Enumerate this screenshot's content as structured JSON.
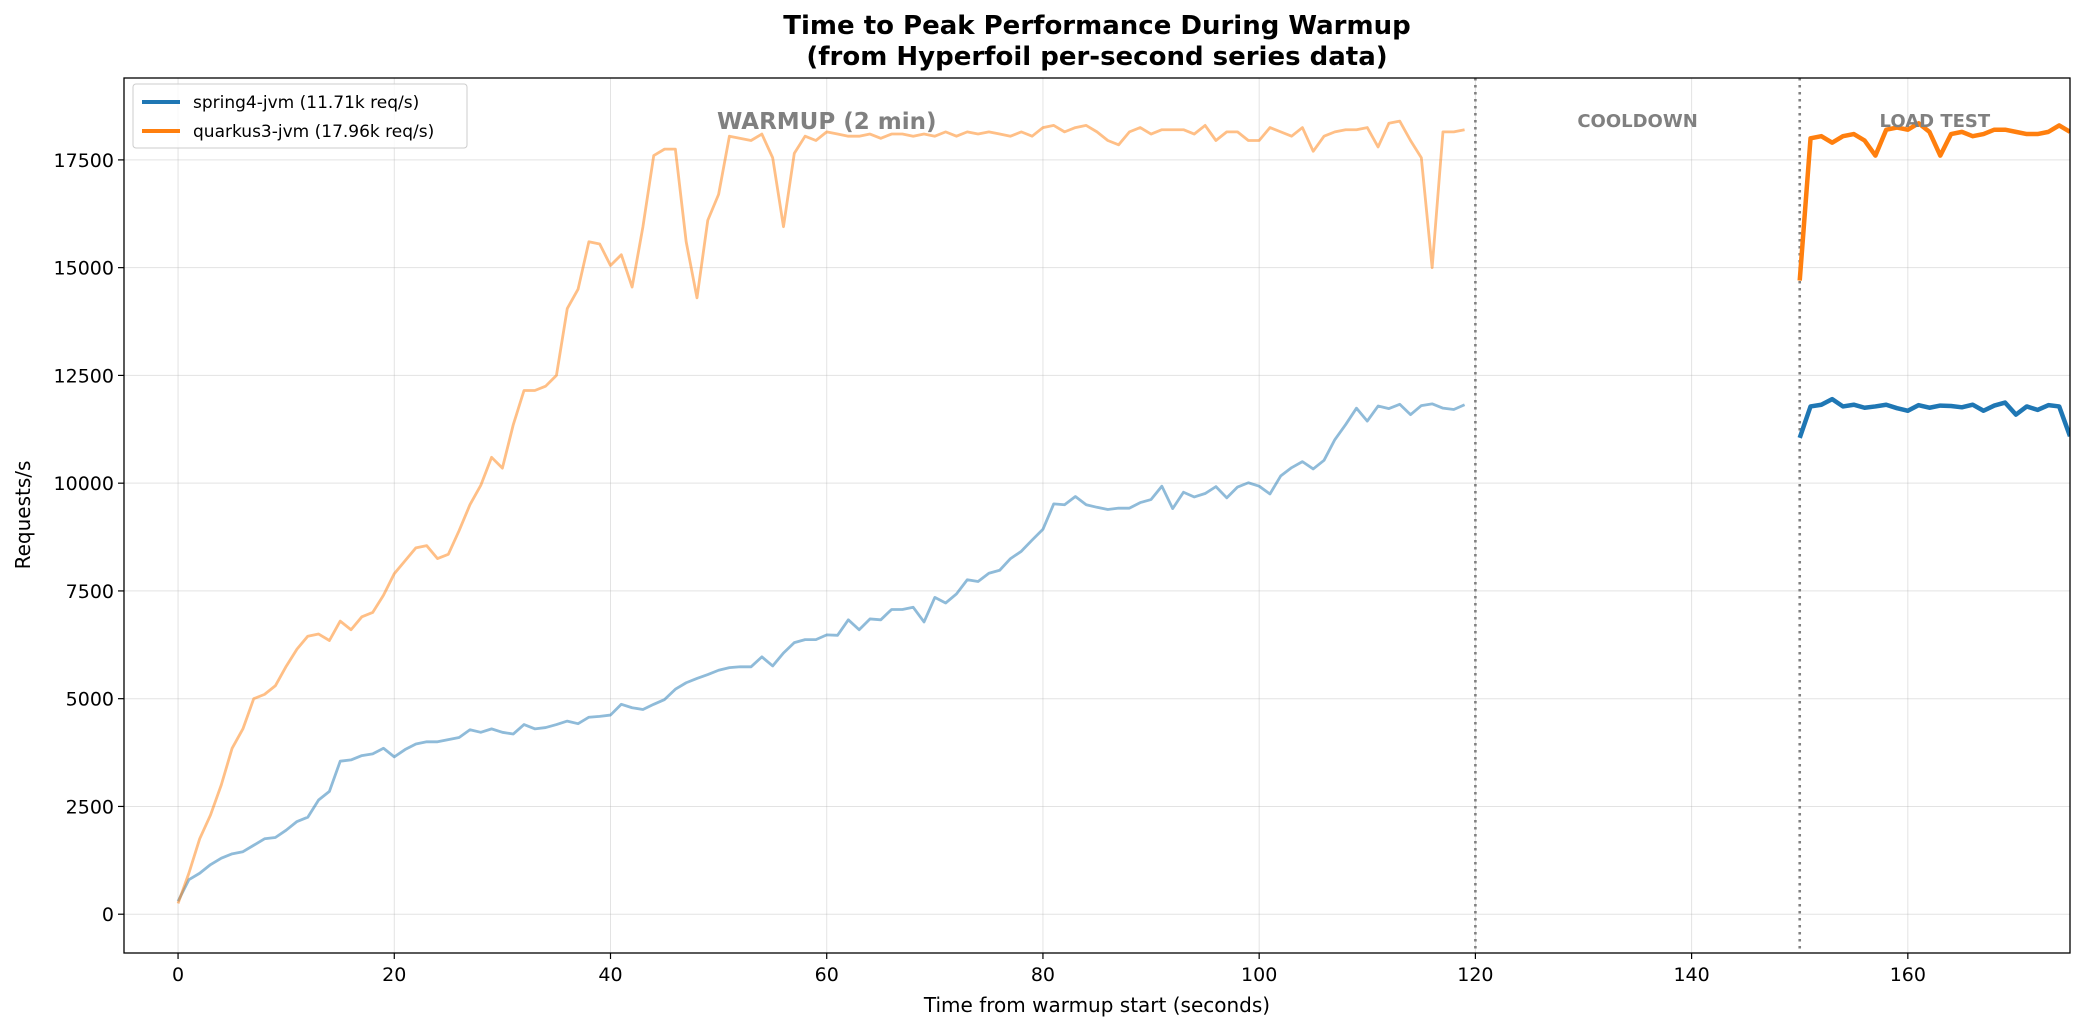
{
  "chart_data": {
    "type": "line",
    "title": "Time to Peak Performance During Warmup",
    "subtitle": "(from Hyperfoil per-second series data)",
    "xlabel": "Time from warmup start (seconds)",
    "ylabel": "Requests/s",
    "xlim": [
      -5,
      175
    ],
    "ylim": [
      -900,
      19400
    ],
    "x_ticks": [
      0,
      20,
      40,
      60,
      80,
      100,
      120,
      140,
      160
    ],
    "y_ticks": [
      0,
      2500,
      5000,
      7500,
      10000,
      12500,
      15000,
      17500
    ],
    "grid": true,
    "legend_position": "top-left",
    "phase_dividers": [
      120,
      150
    ],
    "phases": [
      {
        "label": "WARMUP (2 min)",
        "x_center": 60
      },
      {
        "label": "COOLDOWN",
        "x_center": 135
      },
      {
        "label": "LOAD TEST",
        "x_center": 162.5
      }
    ],
    "series": [
      {
        "name": "spring4-jvm (11.71k req/s)",
        "color": "#1f77b4",
        "warmup_x_start": 0,
        "warmup": [
          300,
          800,
          950,
          1150,
          1300,
          1400,
          1450,
          1600,
          1750,
          1780,
          1950,
          2150,
          2250,
          2650,
          2850,
          3550,
          3580,
          3680,
          3720,
          3850,
          3650,
          3820,
          3950,
          4000,
          4000,
          4050,
          4100,
          4280,
          4220,
          4300,
          4220,
          4180,
          4400,
          4300,
          4330,
          4400,
          4480,
          4420,
          4570,
          4590,
          4620,
          4870,
          4790,
          4750,
          4870,
          4980,
          5220,
          5370,
          5470,
          5560,
          5660,
          5720,
          5740,
          5740,
          5970,
          5760,
          6060,
          6300,
          6370,
          6370,
          6480,
          6470,
          6830,
          6600,
          6850,
          6830,
          7070,
          7070,
          7120,
          6780,
          7350,
          7220,
          7430,
          7760,
          7720,
          7910,
          7980,
          8250,
          8420,
          8680,
          8930,
          9520,
          9500,
          9690,
          9500,
          9440,
          9390,
          9420,
          9420,
          9550,
          9620,
          9930,
          9410,
          9790,
          9680,
          9760,
          9920,
          9660,
          9910,
          10010,
          9930,
          9750,
          10170,
          10360,
          10500,
          10330,
          10530,
          11010,
          11360,
          11740,
          11440,
          11790,
          11730,
          11830,
          11590,
          11800,
          11840,
          11740,
          11710,
          11820
        ],
        "load_x_start": 150,
        "load": [
          11050,
          11780,
          11820,
          11950,
          11780,
          11820,
          11750,
          11780,
          11820,
          11740,
          11680,
          11810,
          11750,
          11800,
          11790,
          11760,
          11820,
          11680,
          11800,
          11870,
          11590,
          11780,
          11700,
          11810,
          11780,
          11090
        ]
      },
      {
        "name": "quarkus3-jvm (17.96k req/s)",
        "color": "#ff7f0e",
        "warmup_x_start": 0,
        "warmup": [
          250,
          950,
          1750,
          2300,
          3000,
          3850,
          4300,
          5000,
          5100,
          5300,
          5750,
          6150,
          6450,
          6500,
          6350,
          6800,
          6600,
          6900,
          7000,
          7400,
          7900,
          8200,
          8500,
          8550,
          8250,
          8350,
          8900,
          9500,
          9950,
          10600,
          10350,
          11350,
          12150,
          12150,
          12250,
          12500,
          14050,
          14500,
          15600,
          15550,
          15050,
          15300,
          14550,
          15950,
          17600,
          17750,
          17750,
          15600,
          14300,
          16100,
          16700,
          18050,
          18000,
          17950,
          18100,
          17550,
          15950,
          17650,
          18050,
          17950,
          18150,
          18100,
          18050,
          18050,
          18100,
          18000,
          18100,
          18100,
          18050,
          18100,
          18050,
          18150,
          18050,
          18150,
          18100,
          18150,
          18100,
          18050,
          18150,
          18050,
          18250,
          18300,
          18150,
          18250,
          18300,
          18150,
          17950,
          17850,
          18150,
          18250,
          18100,
          18200,
          18200,
          18200,
          18100,
          18300,
          17950,
          18150,
          18150,
          17950,
          17950,
          18250,
          18150,
          18050,
          18250,
          17700,
          18050,
          18150,
          18200,
          18200,
          18250,
          17800,
          18350,
          18400,
          17950,
          17550,
          15000,
          18150,
          18150,
          18200
        ],
        "load_x_start": 150,
        "load": [
          14700,
          18000,
          18050,
          17900,
          18050,
          18100,
          17950,
          17600,
          18200,
          18250,
          18200,
          18350,
          18150,
          17600,
          18100,
          18150,
          18050,
          18100,
          18200,
          18200,
          18150,
          18100,
          18100,
          18150,
          18300,
          18150
        ]
      }
    ]
  }
}
